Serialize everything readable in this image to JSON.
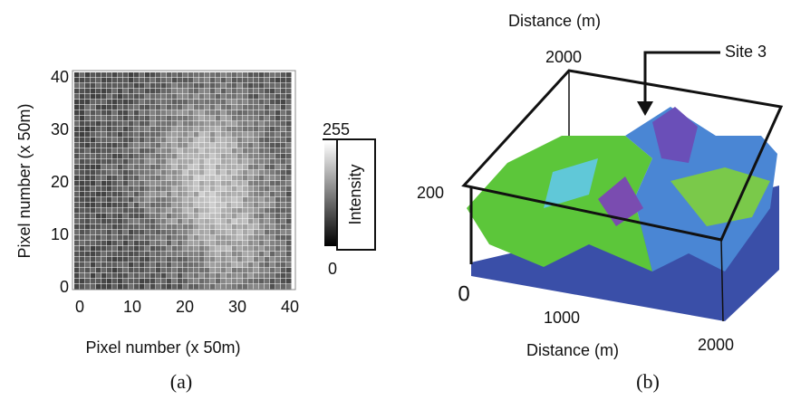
{
  "panel_a": {
    "y_label": "Pixel number (x 50m)",
    "x_label": "Pixel number (x 50m)",
    "x_ticks": [
      "0",
      "10",
      "20",
      "30",
      "40"
    ],
    "y_ticks": [
      "0",
      "10",
      "20",
      "30",
      "40"
    ],
    "colorbar": {
      "max": "255",
      "min": "0",
      "label": "Intensity"
    },
    "panel_label": "(a)"
  },
  "panel_b": {
    "top_axis_label": "Distance (m)",
    "bottom_axis_label": "Distance (m)",
    "top_tick": "2000",
    "vertical_tick": "200",
    "origin_tick": "0",
    "mid_tick": "1000",
    "end_tick": "2000",
    "annotation": "Site 3",
    "panel_label": "(b)"
  }
}
